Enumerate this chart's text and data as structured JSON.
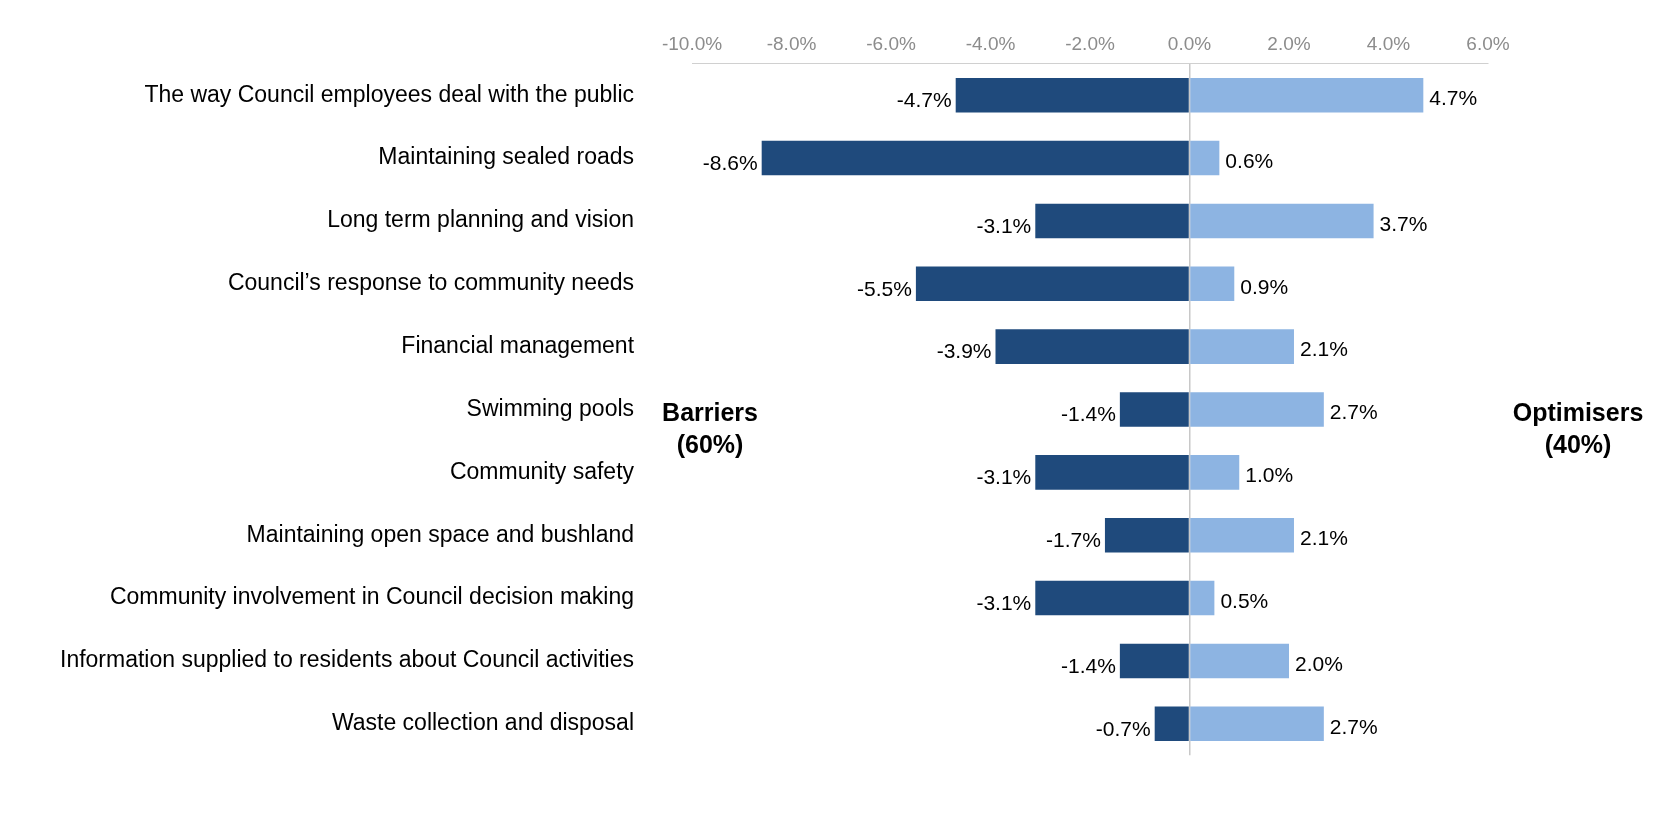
{
  "chart_data": {
    "type": "bar",
    "orientation": "horizontal",
    "stacked": true,
    "categories": [
      "The way Council employees deal with the public",
      "Maintaining sealed roads",
      "Long term planning and vision",
      "Council’s response to community needs",
      "Financial management",
      "Swimming pools",
      "Community safety",
      "Maintaining open space and bushland",
      "Community involvement in Council decision making",
      "Information supplied to residents about Council activities",
      "Waste collection and disposal"
    ],
    "series": [
      {
        "color": "#1f4a7c",
        "values": [
          -4.7,
          -8.6,
          -3.1,
          -5.5,
          -3.9,
          -1.4,
          -3.1,
          -1.7,
          -3.1,
          -1.4,
          -0.7
        ],
        "value_labels": [
          "-4.7%",
          "-8.6%",
          "-3.1%",
          "-5.5%",
          "-3.9%",
          "-1.4%",
          "-3.1%",
          "-1.7%",
          "-3.1%",
          "-1.4%",
          "-0.7%"
        ]
      },
      {
        "color": "#8db4e2",
        "values": [
          4.7,
          0.6,
          3.7,
          0.9,
          2.1,
          2.7,
          1.0,
          2.1,
          0.5,
          2.0,
          2.7
        ],
        "value_labels": [
          "4.7%",
          "0.6%",
          "3.7%",
          "0.9%",
          "2.1%",
          "2.7%",
          "1.0%",
          "2.1%",
          "0.5%",
          "2.0%",
          "2.7%"
        ]
      }
    ],
    "xlim": [
      -10,
      6
    ],
    "xticks": [
      {
        "value": -10,
        "label": "-10.0%"
      },
      {
        "value": -8,
        "label": "-8.0%"
      },
      {
        "value": -6,
        "label": "-6.0%"
      },
      {
        "value": -4,
        "label": "-4.0%"
      },
      {
        "value": -2,
        "label": "-2.0%"
      },
      {
        "value": 0,
        "label": "0.0%"
      },
      {
        "value": 2,
        "label": "2.0%"
      },
      {
        "value": 4,
        "label": "4.0%"
      },
      {
        "value": 6,
        "label": "6.0%"
      }
    ],
    "annotations": [
      "Barriers (60%)",
      "Optimisers (40%)"
    ]
  }
}
